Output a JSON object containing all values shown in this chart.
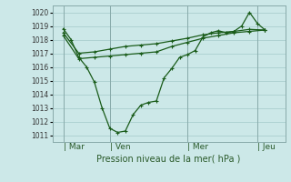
{
  "background_color": "#cce8e8",
  "grid_color": "#aacece",
  "line_color": "#1a5c1a",
  "ylabel": "Pression niveau de la mer( hPa )",
  "ylim": [
    1010.5,
    1020.5
  ],
  "yticks": [
    1011,
    1012,
    1013,
    1014,
    1015,
    1016,
    1017,
    1018,
    1019,
    1020
  ],
  "day_labels": [
    "Mar",
    "Ven",
    "Mer",
    "Jeu"
  ],
  "day_positions": [
    0.5,
    3.5,
    8.5,
    13.0
  ],
  "xlim": [
    -0.2,
    14.8
  ],
  "line1_x": [
    0.5,
    1.0,
    1.5,
    2.0,
    2.5,
    3.0,
    3.5,
    4.0,
    4.5,
    5.0,
    5.5,
    6.0,
    6.5,
    7.0,
    7.5,
    8.0,
    8.5,
    9.0,
    9.5,
    10.0,
    10.5,
    11.0,
    11.5,
    12.0,
    12.5,
    13.0,
    13.5
  ],
  "line1_y": [
    1018.8,
    1018.0,
    1016.7,
    1016.0,
    1014.9,
    1013.0,
    1011.5,
    1011.2,
    1011.3,
    1012.5,
    1013.2,
    1013.4,
    1013.5,
    1015.2,
    1015.9,
    1016.7,
    1016.9,
    1017.2,
    1018.2,
    1018.5,
    1018.65,
    1018.5,
    1018.6,
    1019.0,
    1020.0,
    1019.2,
    1018.7
  ],
  "line2_x": [
    0.5,
    1.5,
    2.5,
    3.5,
    4.5,
    5.5,
    6.5,
    7.5,
    8.5,
    9.5,
    10.5,
    11.5,
    12.5,
    13.5
  ],
  "line2_y": [
    1018.5,
    1017.0,
    1017.1,
    1017.3,
    1017.5,
    1017.6,
    1017.7,
    1017.9,
    1018.1,
    1018.35,
    1018.5,
    1018.6,
    1018.75,
    1018.7
  ],
  "line3_x": [
    0.5,
    1.5,
    2.5,
    3.5,
    4.5,
    5.5,
    6.5,
    7.5,
    8.5,
    9.5,
    10.5,
    11.5,
    12.5,
    13.5
  ],
  "line3_y": [
    1018.3,
    1016.6,
    1016.7,
    1016.8,
    1016.9,
    1017.0,
    1017.1,
    1017.5,
    1017.8,
    1018.1,
    1018.3,
    1018.5,
    1018.6,
    1018.7
  ],
  "vline_color": "#88aaaa",
  "spine_color": "#88aaaa"
}
